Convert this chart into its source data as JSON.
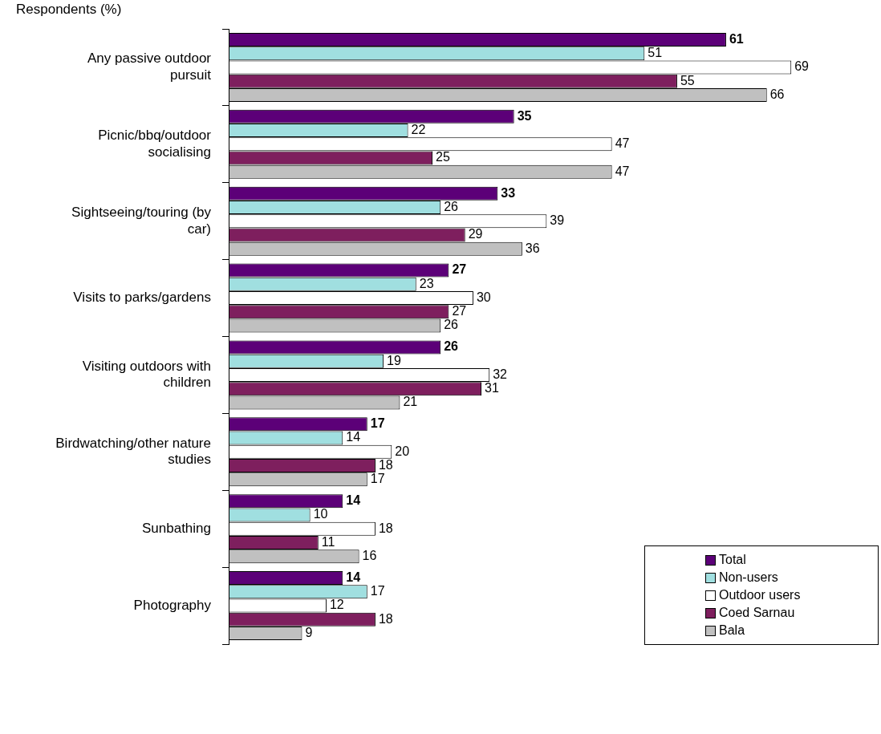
{
  "chart_data": {
    "type": "bar",
    "orientation": "horizontal",
    "title": "Respondents (%)",
    "categories": [
      "Any passive outdoor pursuit",
      "Picnic/bbq/outdoor socialising",
      "Sightseeing/touring (by car)",
      "Visits to parks/gardens",
      "Visiting outdoors with children",
      "Birdwatching/other nature studies",
      "Sunbathing",
      "Photography"
    ],
    "series": [
      {
        "name": "Total",
        "color": "#5c0078",
        "values": [
          61,
          35,
          33,
          27,
          26,
          17,
          14,
          14
        ]
      },
      {
        "name": "Non-users",
        "color": "#a0dfe0",
        "values": [
          51,
          22,
          26,
          23,
          19,
          14,
          10,
          17
        ]
      },
      {
        "name": "Outdoor users",
        "color": "#ffffff",
        "values": [
          69,
          47,
          39,
          30,
          32,
          20,
          18,
          12
        ]
      },
      {
        "name": "Coed Sarnau",
        "color": "#7e1f5e",
        "values": [
          55,
          25,
          29,
          27,
          31,
          18,
          11,
          18
        ]
      },
      {
        "name": "Bala",
        "color": "#c0c0c0",
        "values": [
          66,
          47,
          36,
          26,
          21,
          17,
          16,
          9
        ]
      }
    ],
    "xlim": [
      0,
      80
    ],
    "data_labels": true,
    "legend": "bottom right"
  }
}
